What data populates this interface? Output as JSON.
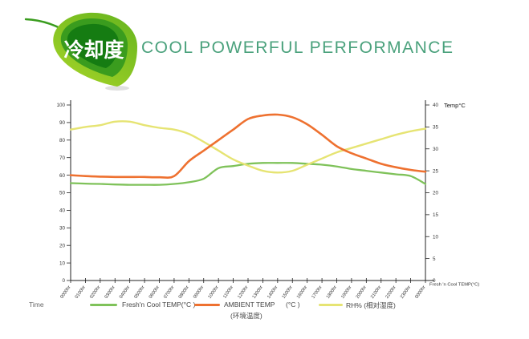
{
  "header": {
    "logo_text": "冷却度",
    "title": "COOL POWERFUL PERFORMANCE"
  },
  "colors": {
    "title_green": "#4aa17c",
    "leaf_light": "#a8d528",
    "leaf_edge": "#6db81f",
    "leaf_mid": "#3a9c1e",
    "leaf_dark": "#157c12",
    "fresh_line": "#7fc25a",
    "ambient_line": "#ee7130",
    "rh_line": "#e6e473",
    "axis_color": "#222222",
    "tick_text": "#333333"
  },
  "chart_data": {
    "type": "line",
    "title": "",
    "x_axis_title": "Time",
    "x_end_label": "Fresh 'n Cool TEMP(°C)",
    "right_axis_title": "Temp°C",
    "grid": false,
    "legend_position": "bottom",
    "left_axis": {
      "min": 0,
      "max": 100,
      "step": 10,
      "ticks": [
        0,
        10,
        20,
        30,
        40,
        50,
        60,
        70,
        80,
        90,
        100
      ]
    },
    "right_axis": {
      "min": 0,
      "max": 40,
      "step": 5,
      "ticks": [
        0,
        5,
        10,
        15,
        20,
        25,
        30,
        35,
        40
      ]
    },
    "categories": [
      "0000hr",
      "0100hr",
      "0200hr",
      "0300hr",
      "0400hr",
      "0500hr",
      "0600hr",
      "0700hr",
      "0800hr",
      "0900hr",
      "1000hr",
      "1100hr",
      "1200hr",
      "1300hr",
      "1400hr",
      "1500hr",
      "1600hr",
      "1700hr",
      "1800hr",
      "1900hr",
      "2000hr",
      "2100hr",
      "2200hr",
      "2300hr",
      "0000hr"
    ],
    "series": [
      {
        "id": "fresh",
        "name": "Fresh'n Cool TEMP(°C )",
        "axis": "left",
        "color": "#7fc25a",
        "width": 2.3,
        "values": [
          55.5,
          55.2,
          55,
          54.7,
          54.5,
          54.5,
          54.5,
          55,
          56,
          58,
          64,
          65.2,
          66.5,
          67,
          67,
          67,
          66.5,
          66,
          65,
          63.5,
          62.5,
          61.5,
          60.5,
          59.5,
          55
        ]
      },
      {
        "id": "ambient",
        "name": "AMBIENT TEMP",
        "unit": "(°C )",
        "subtitle": "(环境温度)",
        "axis": "left",
        "color": "#ee7130",
        "width": 2.6,
        "values": [
          60,
          59.5,
          59.2,
          59,
          59,
          59,
          58.8,
          59.5,
          68,
          74,
          80,
          86,
          92,
          94,
          94.5,
          93,
          89,
          83,
          76.5,
          72.5,
          69.5,
          66.5,
          64.5,
          63,
          62
        ]
      },
      {
        "id": "rh",
        "name": "RH% (相对湿度)",
        "axis": "left",
        "color": "#e6e473",
        "width": 2.4,
        "values": [
          86,
          87.5,
          88.5,
          90.5,
          90.5,
          88.5,
          87,
          86,
          83.5,
          79,
          74,
          69,
          65.5,
          62.5,
          61.5,
          62.5,
          66,
          69.5,
          73,
          75.5,
          78,
          80.5,
          83,
          85,
          86.5
        ]
      }
    ]
  }
}
